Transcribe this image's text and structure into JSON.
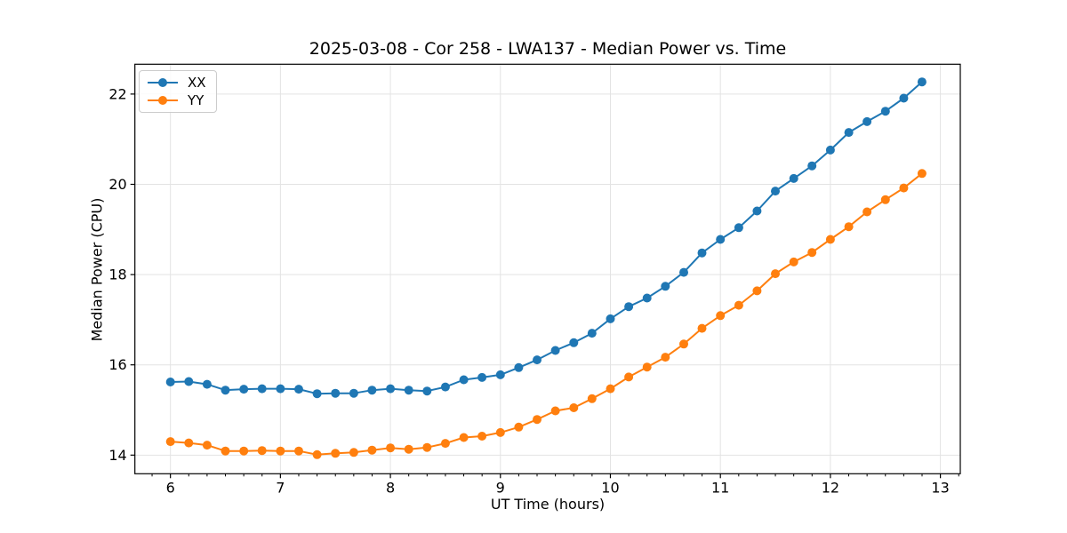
{
  "chart_data": {
    "type": "line",
    "title": "2025-03-08 - Cor 258 - LWA137 - Median Power vs. Time",
    "xlabel": "UT Time (hours)",
    "ylabel": "Median Power (CPU)",
    "xlim": [
      5.677,
      13.181
    ],
    "ylim": [
      13.587,
      22.661
    ],
    "x_ticks": [
      6,
      7,
      8,
      9,
      10,
      11,
      12,
      13
    ],
    "y_ticks": [
      14,
      16,
      18,
      20,
      22
    ],
    "x_minor_per_major": 6,
    "grid": "major",
    "legend_position": "upper-left",
    "colors": {
      "grid": "#e3e3e3",
      "spine": "#000000",
      "tick": "#000000"
    },
    "x": [
      6,
      6.167,
      6.333,
      6.5,
      6.667,
      6.833,
      7,
      7.167,
      7.333,
      7.5,
      7.667,
      7.833,
      8,
      8.167,
      8.333,
      8.5,
      8.667,
      8.833,
      9,
      9.167,
      9.333,
      9.5,
      9.667,
      9.833,
      10,
      10.167,
      10.333,
      10.5,
      10.667,
      10.833,
      11,
      11.167,
      11.333,
      11.5,
      11.667,
      11.833,
      12,
      12.167,
      12.333,
      12.5,
      12.667,
      12.833
    ],
    "series": [
      {
        "name": "XX",
        "color": "#1f77b4",
        "values": [
          15.62,
          15.63,
          15.57,
          15.44,
          15.46,
          15.47,
          15.47,
          15.46,
          15.36,
          15.37,
          15.37,
          15.44,
          15.47,
          15.44,
          15.42,
          15.51,
          15.67,
          15.72,
          15.78,
          15.94,
          16.11,
          16.32,
          16.49,
          16.7,
          17.02,
          17.29,
          17.48,
          17.74,
          18.05,
          18.48,
          18.78,
          19.04,
          19.41,
          19.85,
          20.13,
          20.41,
          20.76,
          21.15,
          21.39,
          21.62,
          21.91,
          22.27
        ]
      },
      {
        "name": "YY",
        "color": "#ff7f0e",
        "values": [
          14.3,
          14.27,
          14.22,
          14.09,
          14.09,
          14.1,
          14.09,
          14.09,
          14.01,
          14.04,
          14.06,
          14.11,
          14.16,
          14.13,
          14.17,
          14.26,
          14.39,
          14.42,
          14.5,
          14.62,
          14.79,
          14.98,
          15.05,
          15.25,
          15.47,
          15.73,
          15.95,
          16.17,
          16.46,
          16.81,
          17.09,
          17.32,
          17.64,
          18.02,
          18.28,
          18.49,
          18.78,
          19.06,
          19.39,
          19.66,
          19.92,
          20.24
        ]
      }
    ]
  }
}
